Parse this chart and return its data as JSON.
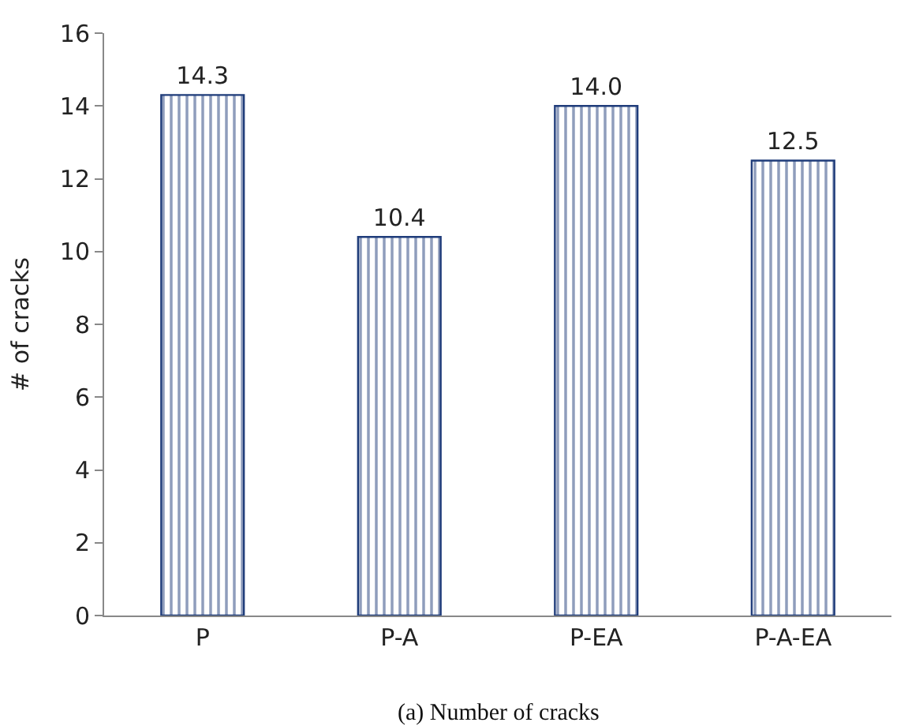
{
  "chart_data": {
    "type": "bar",
    "ylabel": "# of cracks",
    "categories": [
      "P",
      "P-A",
      "P-EA",
      "P-A-EA"
    ],
    "values": [
      14.3,
      10.4,
      14.0,
      12.5
    ],
    "value_labels": [
      "14.3",
      "10.4",
      "14.0",
      "12.5"
    ],
    "color": "#1f3c7a",
    "ylim": [
      0,
      16
    ],
    "yticks": [
      0,
      2,
      4,
      6,
      8,
      10,
      12,
      14,
      16
    ],
    "annotations": [
      "(a) Number of cracks"
    ]
  }
}
